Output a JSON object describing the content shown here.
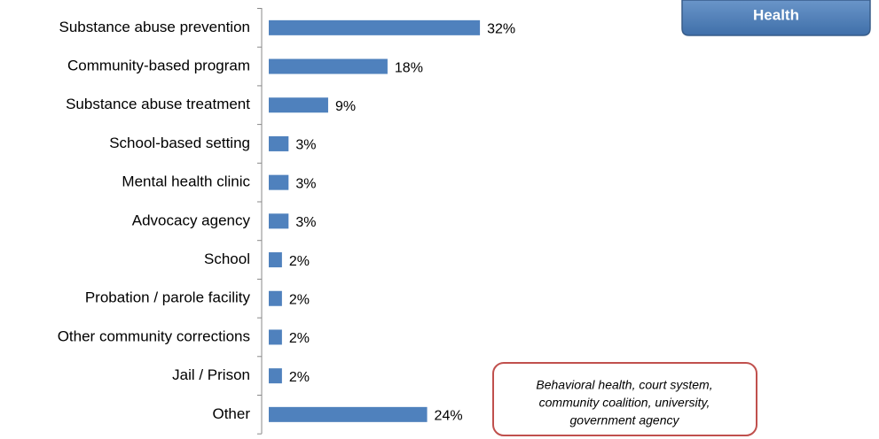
{
  "chart_data": {
    "type": "barh",
    "categories": [
      "Substance abuse prevention",
      "Community-based program",
      "Substance abuse treatment",
      "School-based setting",
      "Mental health clinic",
      "Advocacy agency",
      "School",
      "Probation / parole facility",
      "Other community corrections",
      "Jail / Prison",
      "Other"
    ],
    "values": [
      32,
      18,
      9,
      3,
      3,
      3,
      2,
      2,
      2,
      2,
      24
    ],
    "value_labels": [
      "32%",
      "18%",
      "9%",
      "3%",
      "3%",
      "3%",
      "2%",
      "2%",
      "2%",
      "2%",
      "24%"
    ],
    "color": "#4f81bd",
    "annotation": [
      "Behavioral health, court system,",
      "community coalition, university,",
      "government agency"
    ]
  },
  "nav_button": "Health"
}
